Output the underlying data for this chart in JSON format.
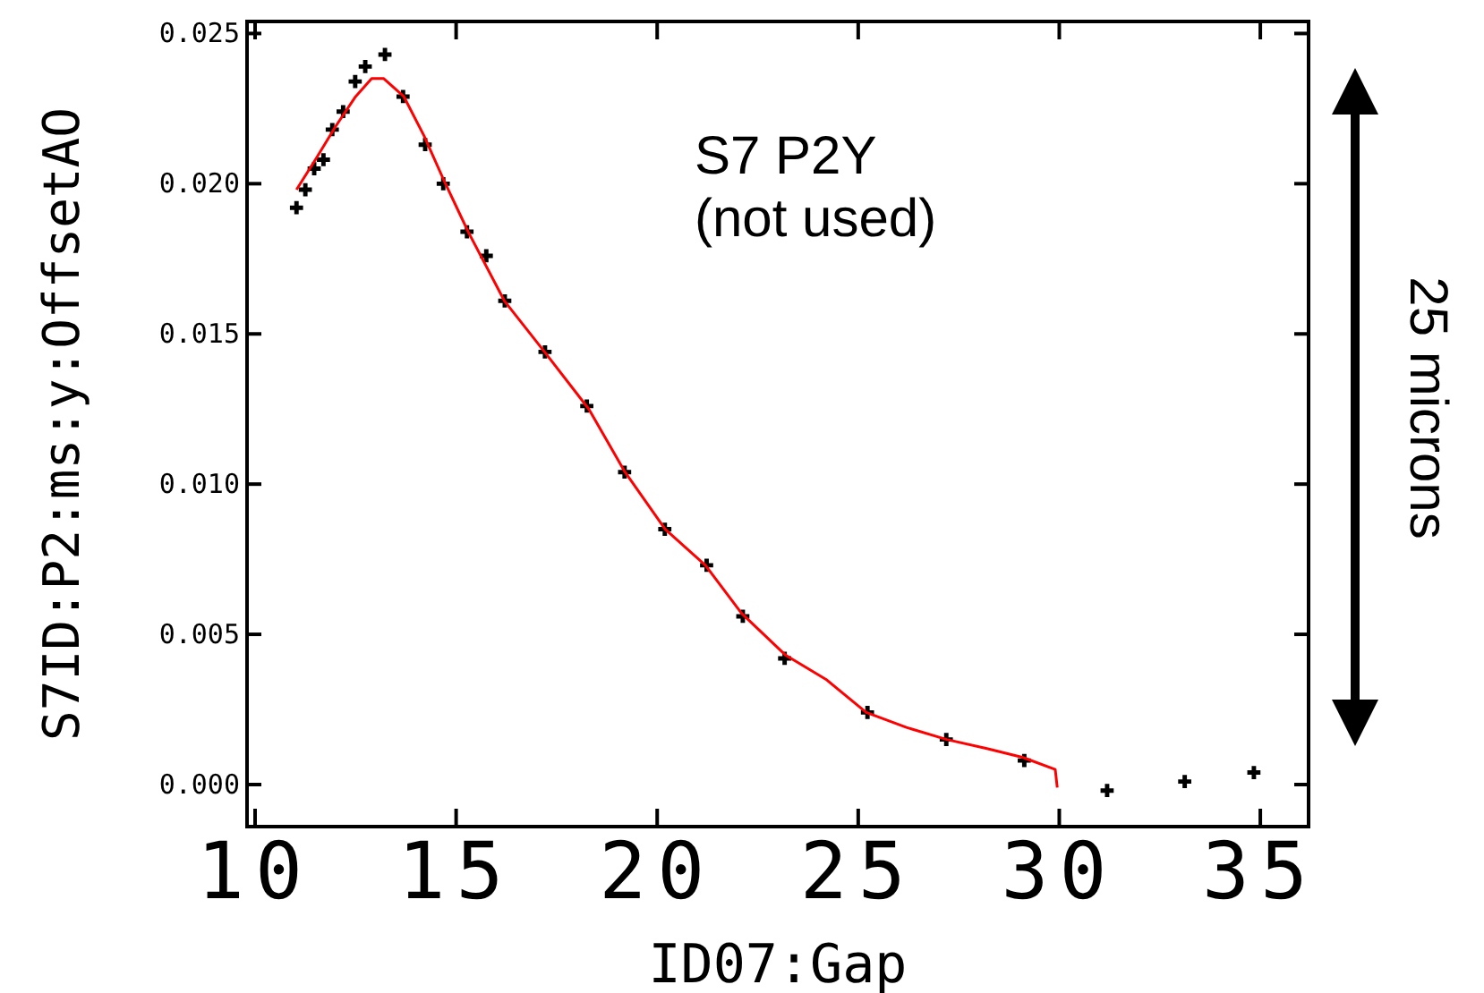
{
  "chart_data": {
    "type": "scatter",
    "xlabel": "ID07:Gap",
    "ylabel": "S7ID:P2:ms:y:OffsetAO",
    "xlim": [
      9.8,
      36.2
    ],
    "ylim": [
      -0.0014,
      0.0254
    ],
    "xticks": [
      10,
      15,
      20,
      25,
      30,
      35
    ],
    "yticks": [
      {
        "value": 0,
        "label": "0.000"
      },
      {
        "value": 0.005,
        "label": "0.005"
      },
      {
        "value": 0.01,
        "label": "0.010"
      },
      {
        "value": 0.015,
        "label": "0.015"
      },
      {
        "value": 0.02,
        "label": "0.020"
      },
      {
        "value": 0.025,
        "label": "0.025"
      }
    ],
    "grid": false,
    "annotations": [
      "S7 P2Y",
      "(not used)",
      "25 microns"
    ],
    "series": [
      {
        "color": "#000000",
        "marker": "cross",
        "x": [
          11.03,
          11.25,
          11.47,
          11.7,
          11.92,
          12.19,
          12.49,
          12.74,
          13.23,
          13.68,
          14.23,
          14.68,
          15.27,
          15.75,
          16.21,
          17.21,
          18.25,
          19.19,
          20.19,
          21.23,
          22.13,
          23.17,
          25.23,
          27.19,
          29.13,
          31.19,
          33.12,
          34.84
        ],
        "values": [
          0.0192,
          0.0198,
          0.0205,
          0.0208,
          0.0218,
          0.0224,
          0.0234,
          0.0239,
          0.0243,
          0.0229,
          0.0213,
          0.02,
          0.0184,
          0.0176,
          0.0161,
          0.0144,
          0.0126,
          0.0104,
          0.0085,
          0.0073,
          0.0056,
          0.0042,
          0.0024,
          0.0015,
          0.0008,
          -0.0002,
          0.0001,
          0.0004
        ]
      },
      {
        "type": "line",
        "color": "#ff0000",
        "marker": "none",
        "line_style": "solid",
        "x": [
          11.03,
          11.5,
          12.0,
          12.5,
          12.9,
          13.2,
          13.7,
          14.2,
          14.7,
          15.3,
          16.2,
          17.2,
          18.3,
          19.2,
          20.2,
          21.2,
          22.1,
          23.2,
          24.2,
          25.2,
          26.2,
          27.2,
          28.2,
          29.1,
          29.9,
          29.95
        ],
        "values": [
          0.0198,
          0.0208,
          0.0219,
          0.0229,
          0.0235,
          0.0235,
          0.0229,
          0.0216,
          0.0201,
          0.0184,
          0.0161,
          0.0144,
          0.0125,
          0.0104,
          0.0085,
          0.0073,
          0.0057,
          0.0043,
          0.0035,
          0.0024,
          0.0019,
          0.0015,
          0.0012,
          0.0009,
          0.0005,
          -0.0001
        ]
      }
    ]
  }
}
